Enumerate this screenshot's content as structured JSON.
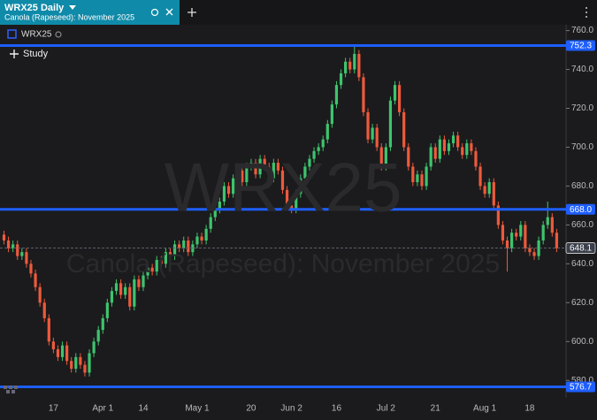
{
  "header": {
    "tab_title": "WRX25 Daily",
    "tab_subtitle": "Canola (Rapeseed): November 2025"
  },
  "legend": {
    "symbol": "WRX25",
    "study_button": "Study"
  },
  "chart_data": {
    "type": "candlestick",
    "title": "WRX25",
    "subtitle": "Canola (Rapeseed): November 2025",
    "up_color": "#3ec46d",
    "down_color": "#ee5a3c",
    "ylim": [
      571,
      763
    ],
    "yticks": [
      {
        "value": 580,
        "label": "580.0"
      },
      {
        "value": 600,
        "label": "600.0"
      },
      {
        "value": 620,
        "label": "620.0"
      },
      {
        "value": 640,
        "label": "640.0"
      },
      {
        "value": 660,
        "label": "660.0"
      },
      {
        "value": 680,
        "label": "680.0"
      },
      {
        "value": 700,
        "label": "700.0"
      },
      {
        "value": 720,
        "label": "720.0"
      },
      {
        "value": 740,
        "label": "740.0"
      },
      {
        "value": 760,
        "label": "760.0"
      }
    ],
    "levels": [
      {
        "value": 752.3,
        "label": "752.3",
        "color": "#1e5eff"
      },
      {
        "value": 668.0,
        "label": "668.0",
        "color": "#1e5eff"
      },
      {
        "value": 576.7,
        "label": "576.7",
        "color": "#1e5eff"
      },
      {
        "value": 648.1,
        "label": "648.1",
        "color": "#3a3f4a"
      }
    ],
    "categories": [
      null,
      null,
      null,
      null,
      null,
      null,
      null,
      null,
      null,
      null,
      null,
      "17",
      null,
      null,
      null,
      null,
      null,
      null,
      null,
      null,
      null,
      null,
      "Apr 1",
      null,
      null,
      null,
      null,
      null,
      null,
      null,
      null,
      "14",
      null,
      null,
      null,
      null,
      null,
      null,
      null,
      null,
      null,
      null,
      null,
      "May 1",
      null,
      null,
      null,
      null,
      null,
      null,
      null,
      null,
      null,
      null,
      null,
      "20",
      null,
      null,
      null,
      null,
      null,
      null,
      null,
      null,
      "Jun 2",
      null,
      null,
      null,
      null,
      null,
      null,
      null,
      null,
      null,
      "16",
      null,
      null,
      null,
      null,
      null,
      null,
      null,
      null,
      null,
      null,
      "Jul 2",
      null,
      null,
      null,
      null,
      null,
      null,
      null,
      null,
      null,
      null,
      "21",
      null,
      null,
      null,
      null,
      null,
      null,
      null,
      null,
      null,
      null,
      "Aug 1",
      null,
      null,
      null,
      null,
      null,
      null,
      null,
      null,
      null,
      "18",
      null,
      null,
      null,
      null,
      null,
      null
    ],
    "candles": [
      [
        655,
        657,
        650,
        652
      ],
      [
        652,
        654,
        646,
        648
      ],
      [
        648,
        652,
        646,
        650
      ],
      [
        650,
        652,
        642,
        644
      ],
      [
        644,
        648,
        642,
        646
      ],
      [
        646,
        648,
        638,
        640
      ],
      [
        640,
        642,
        633,
        635
      ],
      [
        635,
        637,
        626,
        628
      ],
      [
        628,
        630,
        618,
        620
      ],
      [
        620,
        622,
        610,
        612
      ],
      [
        612,
        614,
        598,
        600
      ],
      [
        600,
        602,
        594,
        596
      ],
      [
        596,
        598,
        590,
        592
      ],
      [
        592,
        600,
        590,
        598
      ],
      [
        598,
        600,
        588,
        590
      ],
      [
        590,
        592,
        584,
        586
      ],
      [
        586,
        594,
        584,
        592
      ],
      [
        592,
        594,
        586,
        588
      ],
      [
        588,
        590,
        582,
        584
      ],
      [
        584,
        596,
        582,
        594
      ],
      [
        594,
        602,
        592,
        600
      ],
      [
        600,
        608,
        598,
        606
      ],
      [
        606,
        614,
        604,
        612
      ],
      [
        612,
        622,
        610,
        620
      ],
      [
        620,
        628,
        618,
        626
      ],
      [
        626,
        632,
        624,
        630
      ],
      [
        630,
        632,
        622,
        624
      ],
      [
        624,
        630,
        622,
        628
      ],
      [
        628,
        630,
        616,
        618
      ],
      [
        618,
        634,
        616,
        632
      ],
      [
        632,
        634,
        626,
        628
      ],
      [
        628,
        636,
        626,
        634
      ],
      [
        634,
        640,
        632,
        638
      ],
      [
        638,
        640,
        634,
        636
      ],
      [
        636,
        644,
        634,
        642
      ],
      [
        642,
        644,
        638,
        640
      ],
      [
        640,
        648,
        638,
        646
      ],
      [
        646,
        648,
        642,
        644
      ],
      [
        644,
        652,
        642,
        650
      ],
      [
        650,
        652,
        646,
        648
      ],
      [
        648,
        654,
        646,
        652
      ],
      [
        652,
        654,
        644,
        646
      ],
      [
        646,
        652,
        644,
        650
      ],
      [
        650,
        656,
        648,
        654
      ],
      [
        654,
        656,
        650,
        652
      ],
      [
        652,
        660,
        650,
        658
      ],
      [
        658,
        666,
        656,
        664
      ],
      [
        664,
        670,
        662,
        668
      ],
      [
        668,
        674,
        666,
        672
      ],
      [
        672,
        682,
        670,
        680
      ],
      [
        680,
        682,
        674,
        676
      ],
      [
        676,
        686,
        674,
        684
      ],
      [
        684,
        690,
        682,
        688
      ],
      [
        688,
        690,
        680,
        682
      ],
      [
        682,
        692,
        680,
        690
      ],
      [
        690,
        694,
        688,
        692
      ],
      [
        692,
        694,
        684,
        686
      ],
      [
        686,
        696,
        684,
        694
      ],
      [
        694,
        696,
        688,
        690
      ],
      [
        690,
        692,
        682,
        684
      ],
      [
        684,
        694,
        682,
        692
      ],
      [
        692,
        694,
        686,
        688
      ],
      [
        688,
        690,
        676,
        678
      ],
      [
        678,
        680,
        668,
        670
      ],
      [
        670,
        672,
        666,
        668
      ],
      [
        668,
        678,
        666,
        676
      ],
      [
        676,
        686,
        674,
        684
      ],
      [
        684,
        692,
        682,
        690
      ],
      [
        690,
        696,
        688,
        694
      ],
      [
        694,
        700,
        692,
        698
      ],
      [
        698,
        702,
        696,
        700
      ],
      [
        700,
        706,
        698,
        704
      ],
      [
        704,
        714,
        702,
        712
      ],
      [
        712,
        724,
        710,
        722
      ],
      [
        722,
        734,
        720,
        732
      ],
      [
        732,
        740,
        730,
        738
      ],
      [
        738,
        746,
        736,
        744
      ],
      [
        744,
        746,
        738,
        740
      ],
      [
        740,
        752,
        738,
        748
      ],
      [
        748,
        750,
        734,
        736
      ],
      [
        736,
        738,
        716,
        718
      ],
      [
        718,
        720,
        702,
        704
      ],
      [
        704,
        712,
        702,
        710
      ],
      [
        710,
        712,
        698,
        700
      ],
      [
        700,
        702,
        688,
        690
      ],
      [
        690,
        702,
        688,
        700
      ],
      [
        700,
        726,
        698,
        724
      ],
      [
        724,
        734,
        722,
        732
      ],
      [
        732,
        734,
        716,
        718
      ],
      [
        718,
        720,
        698,
        700
      ],
      [
        700,
        702,
        688,
        690
      ],
      [
        690,
        692,
        680,
        682
      ],
      [
        682,
        688,
        680,
        686
      ],
      [
        686,
        688,
        678,
        680
      ],
      [
        680,
        692,
        678,
        690
      ],
      [
        690,
        702,
        688,
        700
      ],
      [
        700,
        702,
        692,
        694
      ],
      [
        694,
        706,
        692,
        704
      ],
      [
        704,
        706,
        696,
        698
      ],
      [
        698,
        704,
        696,
        702
      ],
      [
        702,
        708,
        700,
        706
      ],
      [
        706,
        708,
        698,
        700
      ],
      [
        700,
        702,
        694,
        696
      ],
      [
        696,
        704,
        694,
        702
      ],
      [
        702,
        704,
        696,
        698
      ],
      [
        698,
        700,
        688,
        690
      ],
      [
        690,
        692,
        678,
        680
      ],
      [
        680,
        682,
        674,
        676
      ],
      [
        676,
        684,
        674,
        682
      ],
      [
        682,
        684,
        668,
        670
      ],
      [
        670,
        672,
        658,
        660
      ],
      [
        660,
        662,
        650,
        652
      ],
      [
        652,
        654,
        636,
        648
      ],
      [
        648,
        658,
        646,
        656
      ],
      [
        656,
        658,
        652,
        654
      ],
      [
        654,
        662,
        652,
        660
      ],
      [
        660,
        662,
        646,
        648
      ],
      [
        648,
        650,
        644,
        646
      ],
      [
        646,
        648,
        642,
        644
      ],
      [
        644,
        654,
        642,
        652
      ],
      [
        652,
        662,
        650,
        660
      ],
      [
        660,
        672,
        658,
        664
      ],
      [
        664,
        666,
        654,
        656
      ],
      [
        656,
        658,
        646,
        648
      ]
    ]
  }
}
